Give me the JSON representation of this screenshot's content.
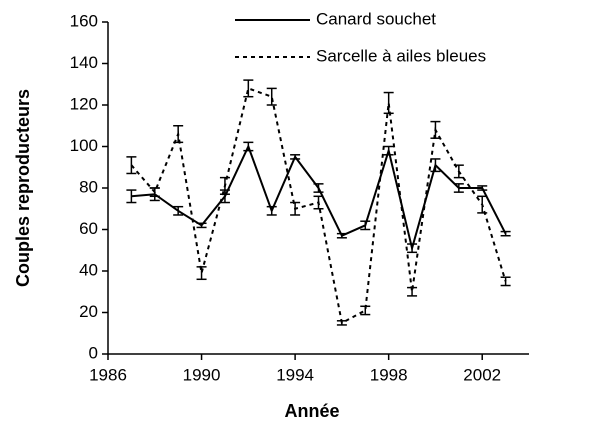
{
  "chart_data": {
    "type": "line",
    "xlabel": "Année",
    "ylabel": "Couples reproducteurs",
    "x": [
      1987,
      1988,
      1989,
      1990,
      1991,
      1992,
      1993,
      1994,
      1995,
      1996,
      1997,
      1998,
      1999,
      2000,
      2001,
      2002,
      2003
    ],
    "series": [
      {
        "name": "Canard souchet",
        "color": "#000000",
        "dash": "solid",
        "values": [
          76,
          77,
          69,
          62,
          76,
          100,
          69,
          95,
          80,
          57,
          62,
          98,
          51,
          91,
          80,
          80,
          58
        ],
        "errors": [
          3,
          3,
          2,
          1,
          3,
          2,
          2,
          1,
          2,
          1,
          2,
          2,
          2,
          3,
          2,
          1,
          1
        ]
      },
      {
        "name": "Sarcelle à ailes bleues",
        "color": "#000000",
        "dash": "dotted",
        "values": [
          91,
          78,
          106,
          39,
          81,
          128,
          124,
          70,
          73,
          15,
          21,
          121,
          30,
          108,
          88,
          72,
          35
        ],
        "errors": [
          4,
          2,
          4,
          3,
          4,
          4,
          4,
          3,
          3,
          1,
          2,
          5,
          2,
          4,
          3,
          4,
          2
        ]
      }
    ],
    "xlim": [
      1986,
      2004
    ],
    "xticks": [
      1986,
      1990,
      1994,
      1998,
      2002
    ],
    "ylim": [
      0,
      160
    ],
    "yticks": [
      0,
      20,
      40,
      60,
      80,
      100,
      120,
      140,
      160
    ],
    "grid": false,
    "legend": "top"
  }
}
